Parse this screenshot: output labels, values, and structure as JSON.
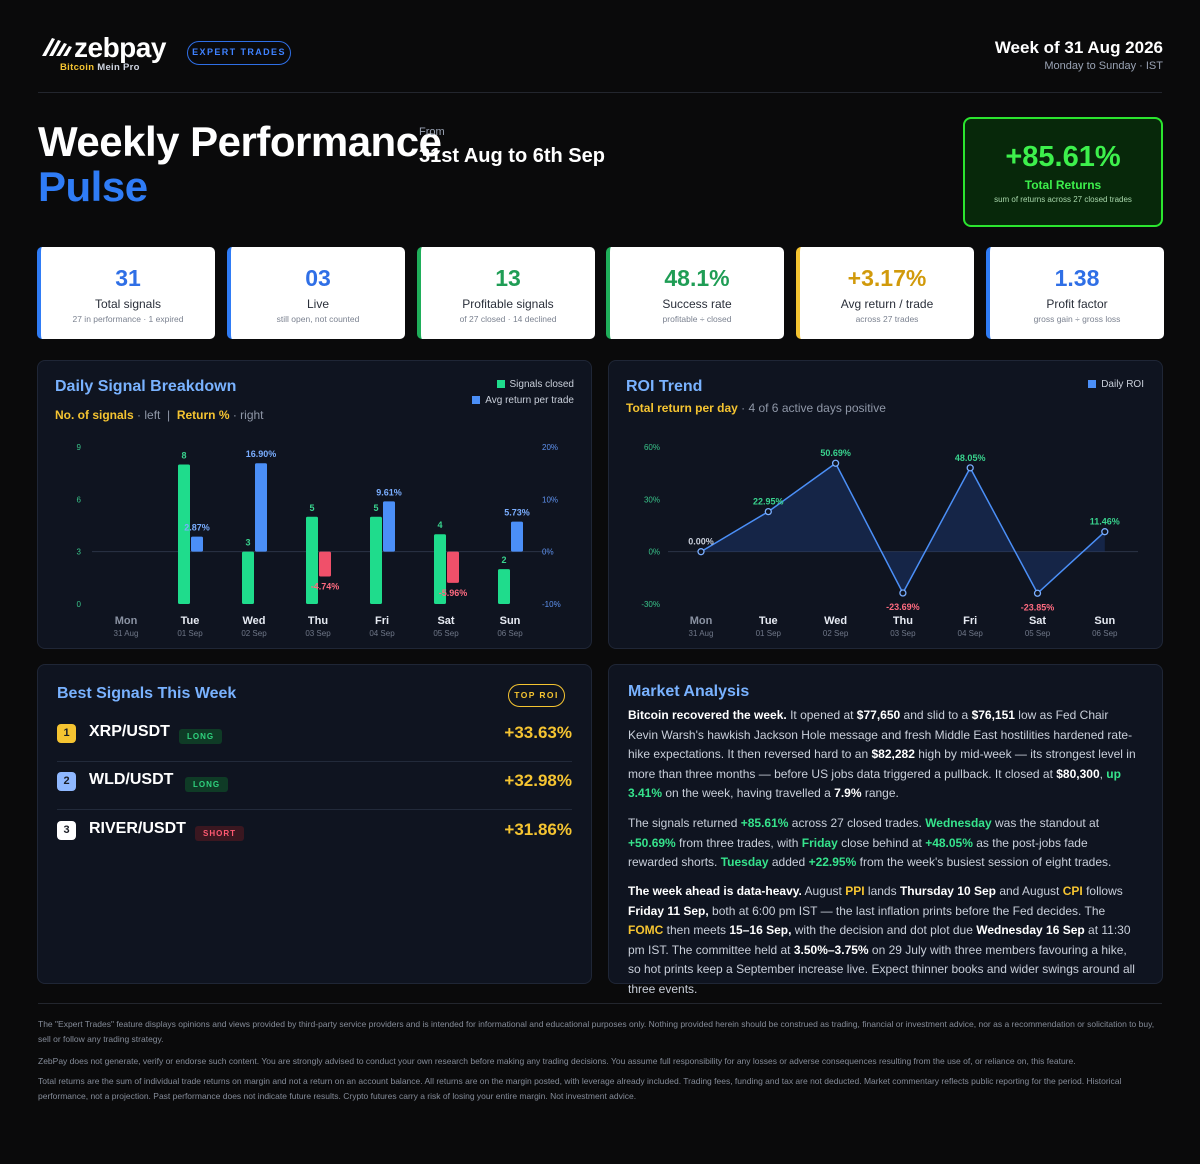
{
  "header": {
    "brand": "zebpay",
    "tagline_pre": "Bitcoin",
    "tagline_post": "Mein Pro",
    "expert_pill": "EXPERT TRADES",
    "week_title": "Week of 31 Aug 2026",
    "week_sub": "Monday to Sunday · IST"
  },
  "hero": {
    "title_line1": "Weekly Performance",
    "title_line2": "Pulse",
    "from_label": "From",
    "date_range": "31st Aug to 6th Sep",
    "total_value": "+85.61%",
    "total_label": "Total Returns",
    "total_sub": "sum of returns across 27 closed trades"
  },
  "stats": [
    {
      "value": "31",
      "label": "Total signals",
      "sub": "27 in performance · 1 expired",
      "color": "#2f6fe6",
      "accent": "#2f7cf6"
    },
    {
      "value": "03",
      "label": "Live",
      "sub": "still open, not counted",
      "color": "#2f6fe6",
      "accent": "#2f7cf6"
    },
    {
      "value": "13",
      "label": "Profitable signals",
      "sub": "of 27 closed · 14 declined",
      "color": "#1f9d55",
      "accent": "#1fae5a"
    },
    {
      "value": "48.1%",
      "label": "Success rate",
      "sub": "profitable ÷ closed",
      "color": "#1f9d55",
      "accent": "#1fae5a"
    },
    {
      "value": "+3.17%",
      "label": "Avg return / trade",
      "sub": "across 27 trades",
      "color": "#d19a0b",
      "accent": "#f5c431"
    },
    {
      "value": "1.38",
      "label": "Profit factor",
      "sub": "gross gain ÷ gross loss",
      "color": "#2f6fe6",
      "accent": "#2f7cf6"
    }
  ],
  "daily": {
    "title": "Daily Signal Breakdown",
    "sub_a": "No. of signals",
    "sub_a_tail": " · left",
    "sub_div": "|",
    "sub_b": "Return %",
    "sub_b_tail": " · right",
    "legend_closed": "Signals closed",
    "legend_avg": "Avg return per trade"
  },
  "roi": {
    "title": "ROI Trend",
    "sub_a": "Total return per day",
    "sub_tail": " · 4 of 6 active days positive",
    "legend": "Daily ROI"
  },
  "chart_data": [
    {
      "type": "bar",
      "title": "Daily Signal Breakdown",
      "categories": [
        "Mon",
        "Tue",
        "Wed",
        "Thu",
        "Fri",
        "Sat",
        "Sun"
      ],
      "dates": [
        "31 Aug",
        "01 Sep",
        "02 Sep",
        "03 Sep",
        "04 Sep",
        "05 Sep",
        "06 Sep"
      ],
      "series": [
        {
          "name": "Signals closed",
          "axis": "left",
          "values": [
            0,
            8,
            3,
            5,
            5,
            4,
            2
          ],
          "labels": [
            "",
            "8",
            "3",
            "5",
            "5",
            "4",
            "2"
          ],
          "color": "#1fdc8c"
        },
        {
          "name": "Avg return per trade",
          "axis": "right",
          "values": [
            0,
            2.87,
            16.9,
            -4.74,
            9.61,
            -5.96,
            5.73
          ],
          "labels": [
            "",
            "2.87%",
            "16.90%",
            "-4.74%",
            "9.61%",
            "-5.96%",
            "5.73%"
          ],
          "color": "#4b8ff7",
          "negative_color": "#f0506a"
        }
      ],
      "y_left": {
        "ticks": [
          "0",
          "3",
          "6",
          "9"
        ],
        "ylim": [
          0,
          9
        ]
      },
      "y_right": {
        "ticks": [
          "-10%",
          "0%",
          "10%",
          "20%"
        ],
        "ylim": [
          -10,
          20
        ]
      }
    },
    {
      "type": "line",
      "title": "ROI Trend",
      "categories": [
        "Mon",
        "Tue",
        "Wed",
        "Thu",
        "Fri",
        "Sat",
        "Sun"
      ],
      "dates": [
        "31 Aug",
        "01 Sep",
        "02 Sep",
        "03 Sep",
        "04 Sep",
        "05 Sep",
        "06 Sep"
      ],
      "series": [
        {
          "name": "Daily ROI",
          "values": [
            0.0,
            22.95,
            50.69,
            -23.69,
            48.05,
            -23.85,
            11.46
          ],
          "labels": [
            "0.00%",
            "22.95%",
            "50.69%",
            "-23.69%",
            "48.05%",
            "-23.85%",
            "11.46%"
          ],
          "color": "#4b8ff7"
        }
      ],
      "y_ticks": [
        "-30%",
        "0%",
        "30%",
        "60%"
      ],
      "ylim": [
        -30,
        60
      ]
    }
  ],
  "best": {
    "title": "Best Signals This Week",
    "badge": "TOP ROI",
    "rows": [
      {
        "rank": "1",
        "pair": "XRP/USDT",
        "side": "LONG",
        "roi": "+33.63%"
      },
      {
        "rank": "2",
        "pair": "WLD/USDT",
        "side": "LONG",
        "roi": "+32.98%"
      },
      {
        "rank": "3",
        "pair": "RIVER/USDT",
        "side": "SHORT",
        "roi": "+31.86%"
      }
    ]
  },
  "market": {
    "title": "Market Analysis",
    "p1": [
      {
        "t": "Bitcoin recovered the week.",
        "s": "b"
      },
      {
        "t": " It opened at ",
        "s": ""
      },
      {
        "t": "$77,650",
        "s": "b"
      },
      {
        "t": " and slid to a ",
        "s": ""
      },
      {
        "t": "$76,151",
        "s": "b"
      },
      {
        "t": " low as Fed Chair Kevin Warsh's hawkish Jackson Hole message and fresh Middle East hostilities hardened rate-hike expectations. It then reversed hard to an ",
        "s": ""
      },
      {
        "t": "$82,282",
        "s": "b"
      },
      {
        "t": " high by mid-week — its strongest level in more than three months — before US jobs data triggered a pullback. It closed at ",
        "s": ""
      },
      {
        "t": "$80,300",
        "s": "b"
      },
      {
        "t": ", ",
        "s": ""
      },
      {
        "t": "up 3.41%",
        "s": "g"
      },
      {
        "t": " on the week, having travelled a ",
        "s": ""
      },
      {
        "t": "7.9%",
        "s": "b"
      },
      {
        "t": " range.",
        "s": ""
      }
    ],
    "p2": [
      {
        "t": "The signals returned ",
        "s": ""
      },
      {
        "t": "+85.61%",
        "s": "g"
      },
      {
        "t": " across 27 closed trades. ",
        "s": ""
      },
      {
        "t": "Wednesday",
        "s": "g"
      },
      {
        "t": " was the standout at ",
        "s": ""
      },
      {
        "t": "+50.69%",
        "s": "g"
      },
      {
        "t": " from three trades, with ",
        "s": ""
      },
      {
        "t": "Friday",
        "s": "g"
      },
      {
        "t": " close behind at ",
        "s": ""
      },
      {
        "t": "+48.05%",
        "s": "g"
      },
      {
        "t": " as the post-jobs fade rewarded shorts. ",
        "s": ""
      },
      {
        "t": "Tuesday",
        "s": "g"
      },
      {
        "t": " added ",
        "s": ""
      },
      {
        "t": "+22.95%",
        "s": "g"
      },
      {
        "t": " from the week's busiest session of eight trades.",
        "s": ""
      }
    ],
    "p3": [
      {
        "t": "The week ahead is data-heavy.",
        "s": "b"
      },
      {
        "t": " August ",
        "s": ""
      },
      {
        "t": "PPI",
        "s": "y"
      },
      {
        "t": " lands ",
        "s": ""
      },
      {
        "t": "Thursday 10 Sep",
        "s": "b"
      },
      {
        "t": " and August ",
        "s": ""
      },
      {
        "t": "CPI",
        "s": "y"
      },
      {
        "t": " follows ",
        "s": ""
      },
      {
        "t": "Friday 11 Sep,",
        "s": "b"
      },
      {
        "t": " both at 6:00 pm IST — the last inflation prints before the Fed decides. The ",
        "s": ""
      },
      {
        "t": "FOMC",
        "s": "y"
      },
      {
        "t": " then meets ",
        "s": ""
      },
      {
        "t": "15–16 Sep,",
        "s": "b"
      },
      {
        "t": " with the decision and dot plot due ",
        "s": ""
      },
      {
        "t": "Wednesday 16 Sep",
        "s": "b"
      },
      {
        "t": " at 11:30 pm IST. The committee held at ",
        "s": ""
      },
      {
        "t": "3.50%–3.75%",
        "s": "b"
      },
      {
        "t": " on 29 July with three members favouring a hike, so hot prints keep a September increase live. Expect thinner books and wider swings around all three events.",
        "s": ""
      }
    ]
  },
  "disclaimer": [
    "The \"Expert Trades\" feature displays opinions and views provided by third-party service providers and is intended for informational and educational purposes only. Nothing provided herein should be construed as trading, financial or investment advice, nor as a recommendation or solicitation to buy, sell or follow any trading strategy.",
    "ZebPay does not generate, verify or endorse such content. You are strongly advised to conduct your own research before making any trading decisions. You assume full responsibility for any losses or adverse consequences resulting from the use of, or reliance on, this feature.",
    "Total returns are the sum of individual trade returns on margin and not a return on an account balance. All returns are on the margin posted, with leverage already included. Trading fees, funding and tax are not deducted. Market commentary reflects public reporting for the period. Historical performance, not a projection. Past performance does not indicate future results. Crypto futures carry a risk of losing your entire margin. Not investment advice."
  ]
}
